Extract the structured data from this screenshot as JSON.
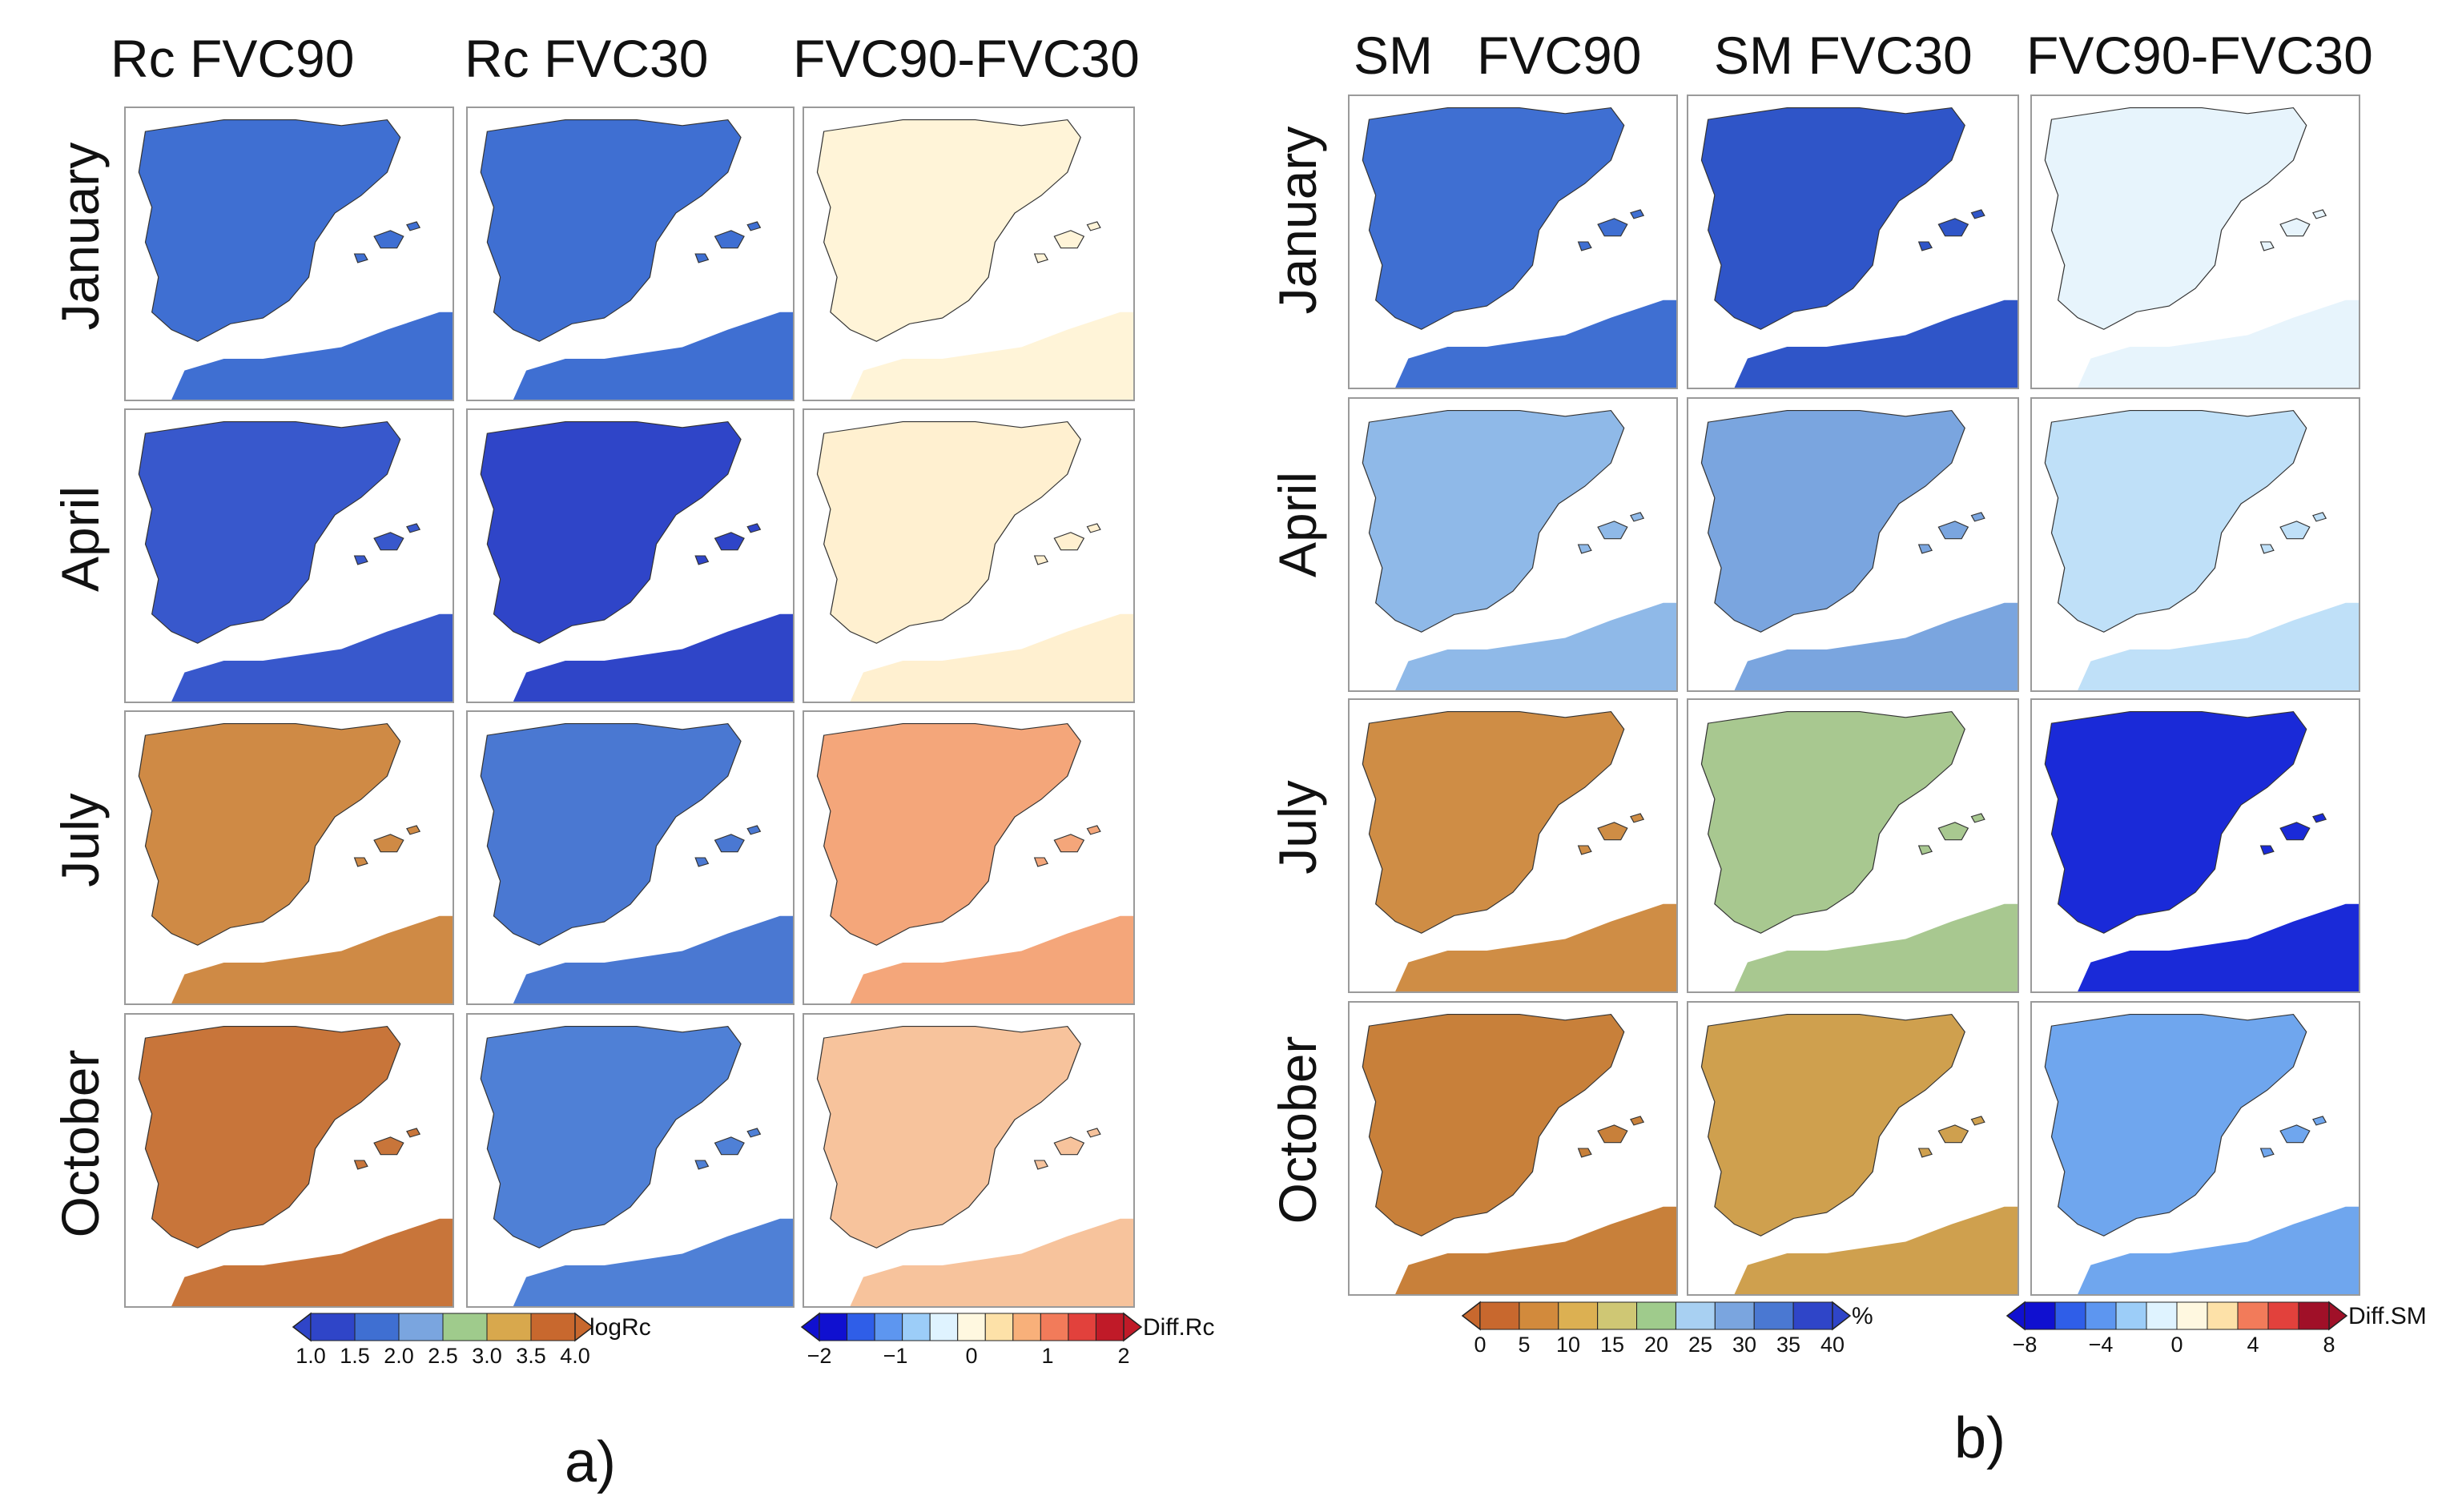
{
  "panel_a": {
    "tag": "a)",
    "columns": [
      "Rc FVC90",
      "Rc FVC30",
      "FVC90-FVC30"
    ],
    "rows": [
      "January",
      "April",
      "July",
      "October"
    ],
    "colorbar_main": {
      "unit": "logRc",
      "ticks": [
        "1.0",
        "1.5",
        "2.0",
        "2.5",
        "3.0",
        "3.5",
        "4.0"
      ],
      "colors": [
        "#2f45c8",
        "#3f6fd2",
        "#7aa5df",
        "#9fcb8c",
        "#d8a84d",
        "#c8682e"
      ]
    },
    "colorbar_diff": {
      "unit": "Diff.Rc",
      "ticks": [
        "−2",
        "−1",
        "0",
        "1",
        "2"
      ],
      "colors": [
        "#1010d0",
        "#2f5ee8",
        "#5d96f0",
        "#9ccdf8",
        "#dff3ff",
        "#fff8e0",
        "#fde1a8",
        "#f8b07a",
        "#f27b5a",
        "#e2413c",
        "#c01a28"
      ]
    }
  },
  "panel_b": {
    "tag": "b)",
    "columns": [
      "SM   FVC90",
      "SM FVC30",
      "FVC90-FVC30"
    ],
    "rows": [
      "January",
      "April",
      "July",
      "October"
    ],
    "colorbar_main": {
      "unit": "%",
      "ticks": [
        "0",
        "5",
        "10",
        "15",
        "20",
        "25",
        "30",
        "35",
        "40"
      ],
      "colors": [
        "#c8682e",
        "#d28a3c",
        "#dcb052",
        "#cfc774",
        "#9fcb8c",
        "#a8d0f2",
        "#7aa5df",
        "#4a78d2",
        "#2f45c8"
      ]
    },
    "colorbar_diff": {
      "unit": "Diff.SM",
      "ticks": [
        "−8",
        "−4",
        "0",
        "4",
        "8"
      ],
      "colors": [
        "#1010d0",
        "#2f5ee8",
        "#5d96f0",
        "#9ccdf8",
        "#dff3ff",
        "#fff8e0",
        "#fde1a8",
        "#f27b5a",
        "#e2413c",
        "#a01028"
      ]
    }
  },
  "map_fill": {
    "a": [
      [
        "#3f6fd2",
        "#3f6fd2",
        "#fff4d8"
      ],
      [
        "#3858cc",
        "#2f45c8",
        "#fff0d0"
      ],
      [
        "#cf8a45",
        "#4a78d2",
        "#f4a67a"
      ],
      [
        "#c8753a",
        "#4f80d6",
        "#f7c39c"
      ]
    ],
    "b": [
      [
        "#3f6fd2",
        "#2f55c8",
        "#e7f4fc"
      ],
      [
        "#8fb9e8",
        "#7aa5df",
        "#bfe0f8"
      ],
      [
        "#cf8d45",
        "#a8c890",
        "#1a2ad8"
      ],
      [
        "#c8803a",
        "#cfa04e",
        "#6fa6ee"
      ]
    ]
  }
}
